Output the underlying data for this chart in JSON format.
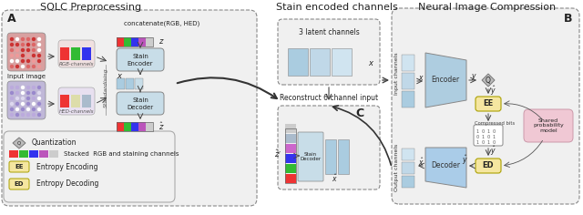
{
  "title_left": "SQLC Preprocessing",
  "title_mid": "Stain encoded channels",
  "title_right": "Neural Image Compression",
  "label_A": "A",
  "label_B": "B",
  "label_C": "C",
  "encoder_color": "#aecde0",
  "decoder_color": "#aacce8",
  "stain_encoder_color": "#c8dde8",
  "stain_decoder_color": "#c8dde8",
  "legend_ee_color": "#f5e6a0",
  "legend_ed_color": "#f5e6a0",
  "shared_model_color": "#f0c8d4",
  "bar_colors": [
    "#ee3333",
    "#33bb33",
    "#3333ee",
    "#bb55bb",
    "#cccccc"
  ],
  "col_list": [
    "#ee3333",
    "#33bb33",
    "#3333ee",
    "#cc66cc",
    "#aabbcc",
    "#cccccc"
  ],
  "ch_colors": [
    "#aacce0",
    "#c0d8e8",
    "#d0e4f0"
  ],
  "input_ch_colors": [
    "#aacce0",
    "#c0d8e8",
    "#d0e4f0"
  ]
}
